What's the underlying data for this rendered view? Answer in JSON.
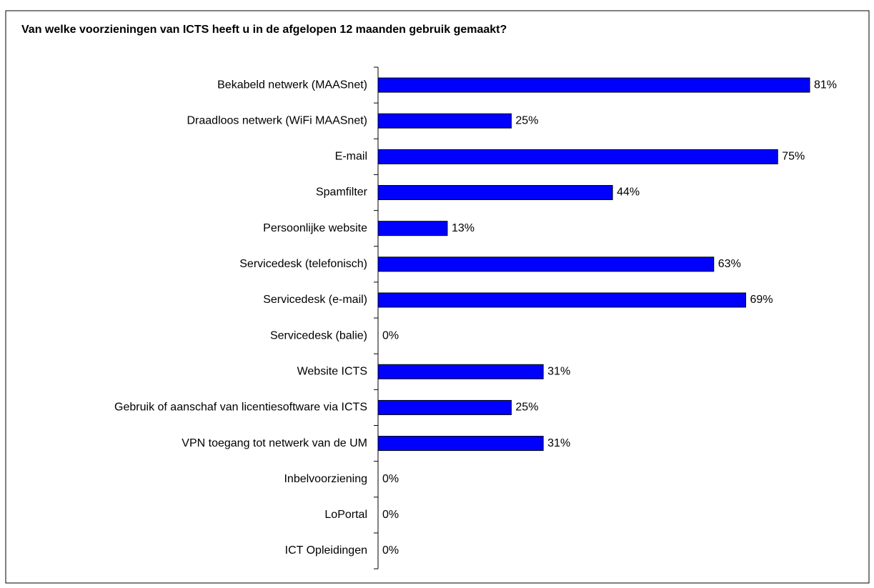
{
  "chart_data": {
    "type": "bar",
    "orientation": "horizontal",
    "title": "Van welke voorzieningen van ICTS heeft u in de afgelopen 12 maanden gebruik gemaakt?",
    "categories": [
      "Bekabeld netwerk (MAASnet)",
      "Draadloos netwerk (WiFi MAASnet)",
      "E-mail",
      "Spamfilter",
      "Persoonlijke website",
      "Servicedesk (telefonisch)",
      "Servicedesk (e-mail)",
      "Servicedesk (balie)",
      "Website ICTS",
      "Gebruik of aanschaf van licentiesoftware via ICTS",
      "VPN toegang tot netwerk van de UM",
      "Inbelvoorziening",
      "LoPortal",
      "ICT Opleidingen"
    ],
    "values": [
      81,
      25,
      75,
      44,
      13,
      63,
      69,
      0,
      31,
      25,
      31,
      0,
      0,
      0
    ],
    "value_labels": [
      "81%",
      "25%",
      "75%",
      "44%",
      "13%",
      "63%",
      "69%",
      "0%",
      "31%",
      "25%",
      "31%",
      "0%",
      "0%",
      "0%"
    ],
    "color": "#0000ff"
  }
}
